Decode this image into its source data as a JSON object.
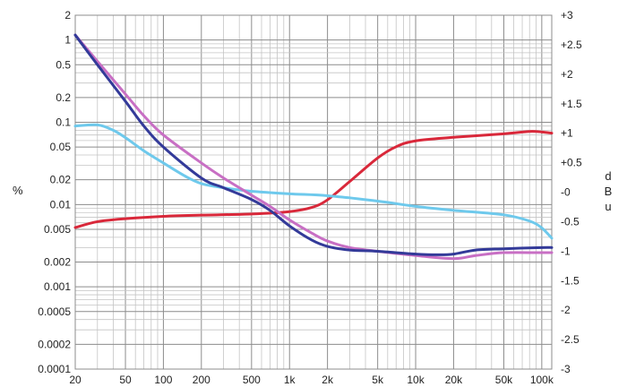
{
  "chart_data": {
    "type": "line",
    "title": "",
    "x_axis": {
      "label": "",
      "scale": "log",
      "range": [
        20,
        120000
      ],
      "ticks": [
        {
          "value": 20,
          "label": "20"
        },
        {
          "value": 50,
          "label": "50"
        },
        {
          "value": 100,
          "label": "100"
        },
        {
          "value": 200,
          "label": "200"
        },
        {
          "value": 500,
          "label": "500"
        },
        {
          "value": 1000,
          "label": "1k"
        },
        {
          "value": 2000,
          "label": "2k"
        },
        {
          "value": 5000,
          "label": "5k"
        },
        {
          "value": 10000,
          "label": "10k"
        },
        {
          "value": 20000,
          "label": "20k"
        },
        {
          "value": 50000,
          "label": "50k"
        },
        {
          "value": 100000,
          "label": "100k"
        }
      ]
    },
    "y_left": {
      "label": "%",
      "scale": "log",
      "range": [
        0.0001,
        2
      ],
      "ticks": [
        {
          "value": 2,
          "label": "2"
        },
        {
          "value": 1,
          "label": "1"
        },
        {
          "value": 0.5,
          "label": "0.5"
        },
        {
          "value": 0.2,
          "label": "0.2"
        },
        {
          "value": 0.1,
          "label": "0.1"
        },
        {
          "value": 0.05,
          "label": "0.05"
        },
        {
          "value": 0.02,
          "label": "0.02"
        },
        {
          "value": 0.01,
          "label": "0.01"
        },
        {
          "value": 0.005,
          "label": "0.005"
        },
        {
          "value": 0.002,
          "label": "0.002"
        },
        {
          "value": 0.001,
          "label": "0.001"
        },
        {
          "value": 0.0005,
          "label": "0.0005"
        },
        {
          "value": 0.0002,
          "label": "0.0002"
        },
        {
          "value": 0.0001,
          "label": "0.0001"
        }
      ]
    },
    "y_right": {
      "label_letters": [
        "d",
        "B",
        "u"
      ],
      "scale": "linear",
      "range": [
        -3,
        3
      ],
      "ticks": [
        {
          "value": 3,
          "label": "+3"
        },
        {
          "value": 2.5,
          "label": "+2.5"
        },
        {
          "value": 2,
          "label": "+2"
        },
        {
          "value": 1.5,
          "label": "+1.5"
        },
        {
          "value": 1,
          "label": "+1"
        },
        {
          "value": 0.5,
          "label": "+0.5"
        },
        {
          "value": 0,
          "label": "-0"
        },
        {
          "value": -0.5,
          "label": "-0.5"
        },
        {
          "value": -1,
          "label": "-1"
        },
        {
          "value": -1.5,
          "label": "-1.5"
        },
        {
          "value": -2,
          "label": "-2"
        },
        {
          "value": -2.5,
          "label": "-2.5"
        },
        {
          "value": -3,
          "label": "-3"
        }
      ]
    },
    "grid": true,
    "legend": "none",
    "series": [
      {
        "color": "#d9283a",
        "axis": "right",
        "points": [
          [
            20,
            -0.6
          ],
          [
            30,
            -0.5
          ],
          [
            50,
            -0.45
          ],
          [
            100,
            -0.41
          ],
          [
            200,
            -0.39
          ],
          [
            500,
            -0.37
          ],
          [
            1000,
            -0.33
          ],
          [
            1500,
            -0.26
          ],
          [
            2000,
            -0.13
          ],
          [
            3000,
            0.18
          ],
          [
            5000,
            0.58
          ],
          [
            7000,
            0.77
          ],
          [
            10000,
            0.87
          ],
          [
            20000,
            0.93
          ],
          [
            50000,
            0.99
          ],
          [
            80000,
            1.03
          ],
          [
            100000,
            1.02
          ],
          [
            120000,
            1.0
          ]
        ]
      },
      {
        "color": "#6ec9ec",
        "axis": "left",
        "points": [
          [
            20,
            0.09
          ],
          [
            30,
            0.093
          ],
          [
            40,
            0.08
          ],
          [
            50,
            0.065
          ],
          [
            70,
            0.045
          ],
          [
            100,
            0.032
          ],
          [
            150,
            0.022
          ],
          [
            200,
            0.018
          ],
          [
            300,
            0.016
          ],
          [
            500,
            0.0145
          ],
          [
            1000,
            0.0135
          ],
          [
            2000,
            0.0128
          ],
          [
            5000,
            0.011
          ],
          [
            10000,
            0.0095
          ],
          [
            20000,
            0.0085
          ],
          [
            50000,
            0.0075
          ],
          [
            80000,
            0.0063
          ],
          [
            100000,
            0.0052
          ],
          [
            120000,
            0.0039
          ]
        ]
      },
      {
        "color": "#c86fc4",
        "axis": "left",
        "points": [
          [
            20,
            1.15
          ],
          [
            30,
            0.55
          ],
          [
            50,
            0.22
          ],
          [
            70,
            0.12
          ],
          [
            100,
            0.07
          ],
          [
            200,
            0.032
          ],
          [
            300,
            0.021
          ],
          [
            500,
            0.013
          ],
          [
            700,
            0.0095
          ],
          [
            1000,
            0.0065
          ],
          [
            1500,
            0.0045
          ],
          [
            2000,
            0.0036
          ],
          [
            3000,
            0.003
          ],
          [
            5000,
            0.0027
          ],
          [
            10000,
            0.0024
          ],
          [
            20000,
            0.0022
          ],
          [
            30000,
            0.0024
          ],
          [
            50000,
            0.0026
          ],
          [
            100000,
            0.0026
          ],
          [
            120000,
            0.0026
          ]
        ]
      },
      {
        "color": "#333a99",
        "axis": "left",
        "points": [
          [
            20,
            1.15
          ],
          [
            30,
            0.5
          ],
          [
            50,
            0.18
          ],
          [
            70,
            0.09
          ],
          [
            100,
            0.05
          ],
          [
            200,
            0.021
          ],
          [
            300,
            0.016
          ],
          [
            500,
            0.0115
          ],
          [
            700,
            0.0085
          ],
          [
            1000,
            0.0055
          ],
          [
            1500,
            0.0037
          ],
          [
            2000,
            0.0031
          ],
          [
            3000,
            0.0028
          ],
          [
            5000,
            0.0027
          ],
          [
            10000,
            0.0025
          ],
          [
            15000,
            0.00245
          ],
          [
            20000,
            0.0025
          ],
          [
            30000,
            0.0028
          ],
          [
            50000,
            0.0029
          ],
          [
            100000,
            0.003
          ],
          [
            120000,
            0.003
          ]
        ]
      }
    ]
  }
}
